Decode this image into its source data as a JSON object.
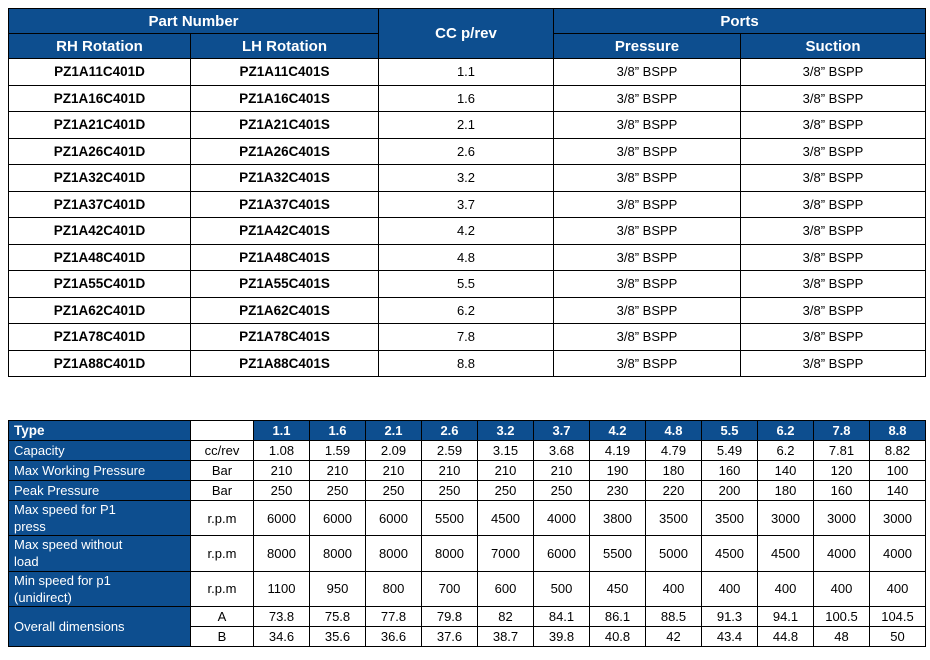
{
  "colors": {
    "header_blue": "#0d4e8f",
    "border_black": "#000000",
    "header_text_white": "#ffffff",
    "data_text_black": "#000000"
  },
  "top_table": {
    "header": {
      "part_number": "Part Number",
      "cc_prev": "CC p/rev",
      "ports": "Ports",
      "rh_rotation": "RH Rotation",
      "lh_rotation": "LH Rotation",
      "pressure": "Pressure",
      "suction": "Suction"
    },
    "rows": [
      {
        "rh": "PZ1A11C401D",
        "lh": "PZ1A11C401S",
        "cc": "1.1",
        "pressure": "3/8” BSPP",
        "suction": "3/8” BSPP"
      },
      {
        "rh": "PZ1A16C401D",
        "lh": "PZ1A16C401S",
        "cc": "1.6",
        "pressure": "3/8” BSPP",
        "suction": "3/8” BSPP"
      },
      {
        "rh": "PZ1A21C401D",
        "lh": "PZ1A21C401S",
        "cc": "2.1",
        "pressure": "3/8” BSPP",
        "suction": "3/8” BSPP"
      },
      {
        "rh": "PZ1A26C401D",
        "lh": "PZ1A26C401S",
        "cc": "2.6",
        "pressure": "3/8” BSPP",
        "suction": "3/8” BSPP"
      },
      {
        "rh": "PZ1A32C401D",
        "lh": "PZ1A32C401S",
        "cc": "3.2",
        "pressure": "3/8” BSPP",
        "suction": "3/8” BSPP"
      },
      {
        "rh": "PZ1A37C401D",
        "lh": "PZ1A37C401S",
        "cc": "3.7",
        "pressure": "3/8” BSPP",
        "suction": "3/8” BSPP"
      },
      {
        "rh": "PZ1A42C401D",
        "lh": "PZ1A42C401S",
        "cc": "4.2",
        "pressure": "3/8” BSPP",
        "suction": "3/8” BSPP"
      },
      {
        "rh": "PZ1A48C401D",
        "lh": "PZ1A48C401S",
        "cc": "4.8",
        "pressure": "3/8” BSPP",
        "suction": "3/8” BSPP"
      },
      {
        "rh": "PZ1A55C401D",
        "lh": "PZ1A55C401S",
        "cc": "5.5",
        "pressure": "3/8” BSPP",
        "suction": "3/8” BSPP"
      },
      {
        "rh": "PZ1A62C401D",
        "lh": "PZ1A62C401S",
        "cc": "6.2",
        "pressure": "3/8” BSPP",
        "suction": "3/8” BSPP"
      },
      {
        "rh": "PZ1A78C401D",
        "lh": "PZ1A78C401S",
        "cc": "7.8",
        "pressure": "3/8” BSPP",
        "suction": "3/8” BSPP"
      },
      {
        "rh": "PZ1A88C401D",
        "lh": "PZ1A88C401S",
        "cc": "8.8",
        "pressure": "3/8” BSPP",
        "suction": "3/8” BSPP"
      }
    ]
  },
  "spec_table": {
    "type_label": "Type",
    "unit_header": "",
    "columns": [
      "1.1",
      "1.6",
      "2.1",
      "2.6",
      "3.2",
      "3.7",
      "4.2",
      "4.8",
      "5.5",
      "6.2",
      "7.8",
      "8.8"
    ],
    "rows": [
      {
        "label": "Capacity",
        "unit": "cc/rev",
        "values": [
          "1.08",
          "1.59",
          "2.09",
          "2.59",
          "3.15",
          "3.68",
          "4.19",
          "4.79",
          "5.49",
          "6.2",
          "7.81",
          "8.82"
        ]
      },
      {
        "label": "Max Working Pressure",
        "unit": "Bar",
        "values": [
          "210",
          "210",
          "210",
          "210",
          "210",
          "210",
          "190",
          "180",
          "160",
          "140",
          "120",
          "100"
        ]
      },
      {
        "label": "Peak Pressure",
        "unit": "Bar",
        "values": [
          "250",
          "250",
          "250",
          "250",
          "250",
          "250",
          "230",
          "220",
          "200",
          "180",
          "160",
          "140"
        ]
      },
      {
        "label": "Max speed for P1\npress",
        "unit": "r.p.m",
        "values": [
          "6000",
          "6000",
          "6000",
          "5500",
          "4500",
          "4000",
          "3800",
          "3500",
          "3500",
          "3000",
          "3000",
          "3000"
        ]
      },
      {
        "label": "Max speed without\nload",
        "unit": "r.p.m",
        "values": [
          "8000",
          "8000",
          "8000",
          "8000",
          "7000",
          "6000",
          "5500",
          "5000",
          "4500",
          "4500",
          "4000",
          "4000"
        ]
      },
      {
        "label": "Min speed for p1\n(unidirect)",
        "unit": "r.p.m",
        "values": [
          "1100",
          "950",
          "800",
          "700",
          "600",
          "500",
          "450",
          "400",
          "400",
          "400",
          "400",
          "400"
        ]
      }
    ],
    "overall_dimensions": {
      "label": "Overall dimensions",
      "rows": [
        {
          "unit": "A",
          "values": [
            "73.8",
            "75.8",
            "77.8",
            "79.8",
            "82",
            "84.1",
            "86.1",
            "88.5",
            "91.3",
            "94.1",
            "100.5",
            "104.5"
          ]
        },
        {
          "unit": "B",
          "values": [
            "34.6",
            "35.6",
            "36.6",
            "37.6",
            "38.7",
            "39.8",
            "40.8",
            "42",
            "43.4",
            "44.8",
            "48",
            "50"
          ]
        }
      ]
    }
  }
}
